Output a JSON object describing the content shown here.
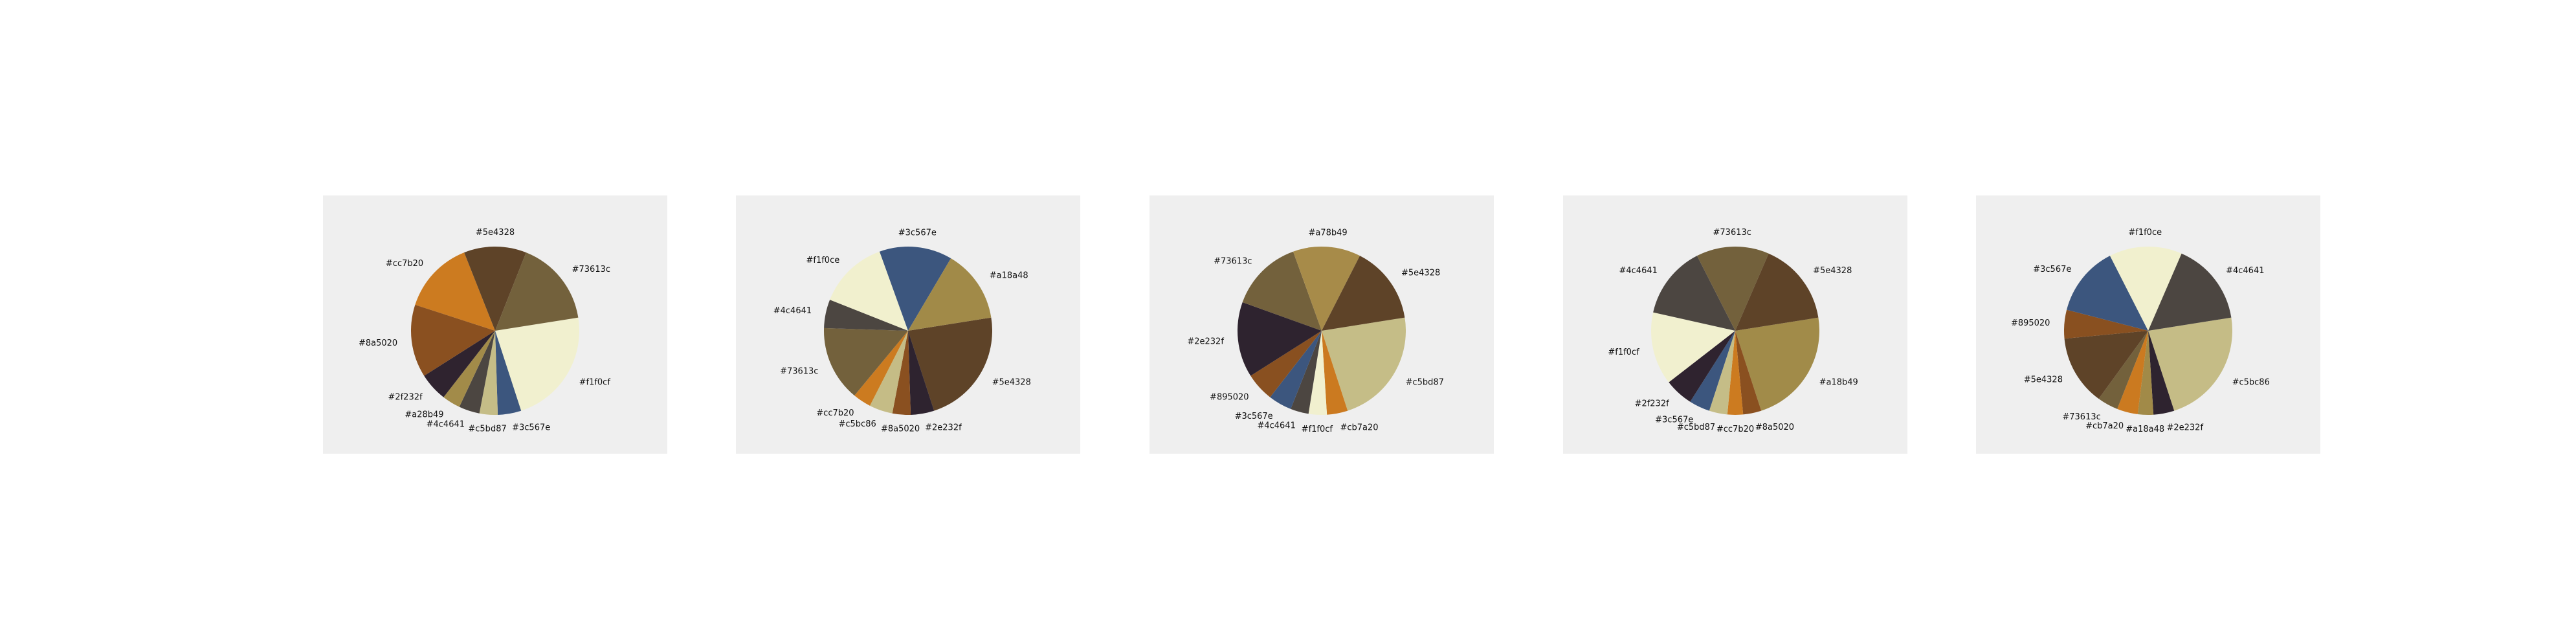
{
  "page": {
    "background": "#ffffff",
    "panel_background": "#efefef"
  },
  "chart_data": [
    {
      "type": "pie",
      "slices": [
        {
          "label": "#f1f0cf",
          "color": "#f1f0cf",
          "value": 22.5
        },
        {
          "label": "#3c567e",
          "color": "#3c567e",
          "value": 4.5
        },
        {
          "label": "#c5bd87",
          "color": "#c5bd87",
          "value": 3.5
        },
        {
          "label": "#4c4641",
          "color": "#4c4641",
          "value": 4
        },
        {
          "label": "#a28b49",
          "color": "#a28b49",
          "value": 3.5
        },
        {
          "label": "#2f232f",
          "color": "#2f232f",
          "value": 5.5
        },
        {
          "label": "#8a5020",
          "color": "#8a5020",
          "value": 14
        },
        {
          "label": "#cc7b20",
          "color": "#cc7b20",
          "value": 14
        },
        {
          "label": "#5e4328",
          "color": "#5e4328",
          "value": 12
        },
        {
          "label": "#73613c",
          "color": "#73613c",
          "value": 16.5
        }
      ]
    },
    {
      "type": "pie",
      "slices": [
        {
          "label": "#5e4328",
          "color": "#5e4328",
          "value": 22.5
        },
        {
          "label": "#2e232f",
          "color": "#2e232f",
          "value": 4.5
        },
        {
          "label": "#8a5020",
          "color": "#8a5020",
          "value": 3.5
        },
        {
          "label": "#c5bc86",
          "color": "#c5bc86",
          "value": 4.5
        },
        {
          "label": "#cc7b20",
          "color": "#cc7b20",
          "value": 3.5
        },
        {
          "label": "#73613c",
          "color": "#73613c",
          "value": 14.5
        },
        {
          "label": "#4c4641",
          "color": "#4c4641",
          "value": 5.5
        },
        {
          "label": "#f1f0ce",
          "color": "#f1f0ce",
          "value": 13.5
        },
        {
          "label": "#3c567e",
          "color": "#3c567e",
          "value": 14
        },
        {
          "label": "#a18a48",
          "color": "#a18a48",
          "value": 14
        }
      ]
    },
    {
      "type": "pie",
      "slices": [
        {
          "label": "#c5bd87",
          "color": "#c5bd87",
          "value": 22.5
        },
        {
          "label": "#cb7a20",
          "color": "#cb7a20",
          "value": 4
        },
        {
          "label": "#f1f0cf",
          "color": "#f1f0cf",
          "value": 3.5
        },
        {
          "label": "#4c4641",
          "color": "#4c4641",
          "value": 3.5
        },
        {
          "label": "#3c567e",
          "color": "#3c567e",
          "value": 4.5
        },
        {
          "label": "#895020",
          "color": "#895020",
          "value": 5.5
        },
        {
          "label": "#2e232f",
          "color": "#2e232f",
          "value": 14.5
        },
        {
          "label": "#73613c",
          "color": "#73613c",
          "value": 14
        },
        {
          "label": "#a78b49",
          "color": "#a78b49",
          "value": 13
        },
        {
          "label": "#5e4328",
          "color": "#5e4328",
          "value": 15
        }
      ]
    },
    {
      "type": "pie",
      "slices": [
        {
          "label": "#a18b49",
          "color": "#a18b49",
          "value": 22.5
        },
        {
          "label": "#8a5020",
          "color": "#8a5020",
          "value": 3.5
        },
        {
          "label": "#cc7b20",
          "color": "#cc7b20",
          "value": 3
        },
        {
          "label": "#c5bd87",
          "color": "#c5bd87",
          "value": 3.5
        },
        {
          "label": "#3c567e",
          "color": "#3c567e",
          "value": 4
        },
        {
          "label": "#2f232f",
          "color": "#2f232f",
          "value": 5.5
        },
        {
          "label": "#f1f0cf",
          "color": "#f1f0cf",
          "value": 14
        },
        {
          "label": "#4c4641",
          "color": "#4c4641",
          "value": 14
        },
        {
          "label": "#73613c",
          "color": "#73613c",
          "value": 14
        },
        {
          "label": "#5e4328",
          "color": "#5e4328",
          "value": 16
        }
      ]
    },
    {
      "type": "pie",
      "slices": [
        {
          "label": "#c5bc86",
          "color": "#c5bc86",
          "value": 22.5
        },
        {
          "label": "#2e232f",
          "color": "#2e232f",
          "value": 4
        },
        {
          "label": "#a18a48",
          "color": "#a18a48",
          "value": 3
        },
        {
          "label": "#cb7a20",
          "color": "#cb7a20",
          "value": 4
        },
        {
          "label": "#73613c",
          "color": "#73613c",
          "value": 4
        },
        {
          "label": "#5e4328",
          "color": "#5e4328",
          "value": 13.5
        },
        {
          "label": "#895020",
          "color": "#895020",
          "value": 5.5
        },
        {
          "label": "#3c567e",
          "color": "#3c567e",
          "value": 13.5
        },
        {
          "label": "#f1f0ce",
          "color": "#f1f0ce",
          "value": 14
        },
        {
          "label": "#4c4641",
          "color": "#4c4641",
          "value": 16
        }
      ]
    }
  ]
}
